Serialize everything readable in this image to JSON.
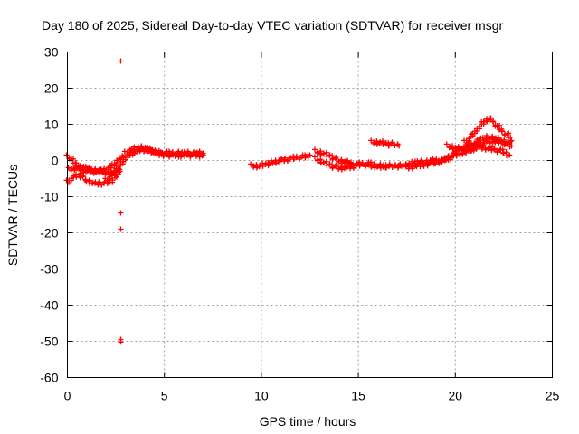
{
  "chart_data": {
    "type": "scatter",
    "title": "Day 180 of 2025, Sidereal Day-to-day VTEC variation (SDTVAR) for receiver msgr",
    "xlabel": "GPS time / hours",
    "ylabel": "SDTVAR / TECUs",
    "xlim": [
      0,
      25
    ],
    "ylim": [
      -60,
      30
    ],
    "xticks": [
      0,
      5,
      10,
      15,
      20,
      25
    ],
    "yticks": [
      -60,
      -50,
      -40,
      -30,
      -20,
      -10,
      0,
      10,
      20,
      30
    ],
    "xtick_labels": [
      "0",
      "5",
      "10",
      "15",
      "20",
      "25"
    ],
    "ytick_labels": [
      "-60",
      "-50",
      "-40",
      "-30",
      "-20",
      "-10",
      "0",
      "10",
      "20",
      "30"
    ],
    "grid": true,
    "marker": "+",
    "color": "#ff0000",
    "outliers": [
      {
        "x": 2.75,
        "y": 27.5
      },
      {
        "x": 2.75,
        "y": -14.5
      },
      {
        "x": 2.75,
        "y": -19.0
      },
      {
        "x": 2.75,
        "y": -49.5
      },
      {
        "x": 2.75,
        "y": -50.2
      }
    ],
    "tracks": [
      {
        "name": "track-1",
        "points": [
          [
            0.0,
            -6.0
          ],
          [
            0.3,
            -4.5
          ],
          [
            0.6,
            -4.0
          ],
          [
            1.0,
            -5.5
          ],
          [
            1.4,
            -6.5
          ],
          [
            1.8,
            -6.2
          ],
          [
            2.2,
            -6.0
          ],
          [
            2.5,
            -4.5
          ],
          [
            2.7,
            -3.0
          ]
        ]
      },
      {
        "name": "track-2",
        "points": [
          [
            0.0,
            1.0
          ],
          [
            0.2,
            0.5
          ],
          [
            0.4,
            -1.0
          ],
          [
            0.7,
            -2.5
          ],
          [
            1.0,
            -3.0
          ],
          [
            1.4,
            -3.0
          ],
          [
            1.8,
            -3.2
          ],
          [
            2.2,
            -3.5
          ],
          [
            2.5,
            -3.0
          ],
          [
            2.7,
            -2.5
          ]
        ]
      },
      {
        "name": "track-3",
        "points": [
          [
            0.1,
            -2.5
          ],
          [
            0.5,
            -2.0
          ],
          [
            0.9,
            -2.0
          ],
          [
            1.3,
            -2.5
          ],
          [
            1.7,
            -3.0
          ],
          [
            2.0,
            -2.5
          ],
          [
            2.3,
            -1.5
          ],
          [
            2.5,
            -0.5
          ],
          [
            2.7,
            0.5
          ],
          [
            2.9,
            1.0
          ]
        ]
      },
      {
        "name": "track-4",
        "points": [
          [
            2.0,
            -5.5
          ],
          [
            2.3,
            -4.0
          ],
          [
            2.6,
            -2.0
          ],
          [
            2.9,
            0.0
          ],
          [
            3.2,
            1.5
          ],
          [
            3.5,
            2.5
          ],
          [
            3.8,
            3.0
          ],
          [
            4.1,
            3.0
          ],
          [
            4.4,
            2.5
          ],
          [
            4.7,
            2.0
          ],
          [
            5.0,
            1.5
          ],
          [
            5.4,
            1.5
          ],
          [
            5.8,
            1.5
          ],
          [
            6.2,
            1.5
          ],
          [
            6.6,
            1.5
          ],
          [
            7.0,
            1.5
          ]
        ]
      },
      {
        "name": "track-5",
        "points": [
          [
            3.0,
            2.0
          ],
          [
            3.3,
            3.0
          ],
          [
            3.6,
            3.5
          ],
          [
            3.9,
            3.5
          ],
          [
            4.2,
            3.0
          ],
          [
            4.5,
            2.5
          ],
          [
            4.8,
            2.0
          ],
          [
            5.2,
            2.0
          ],
          [
            5.6,
            2.0
          ],
          [
            6.0,
            2.0
          ],
          [
            6.4,
            2.0
          ],
          [
            6.8,
            2.0
          ],
          [
            7.0,
            2.0
          ]
        ]
      },
      {
        "name": "track-6",
        "points": [
          [
            9.5,
            -1.5
          ],
          [
            9.9,
            -1.5
          ],
          [
            10.3,
            -1.0
          ],
          [
            10.6,
            -0.5
          ],
          [
            11.0,
            0.0
          ],
          [
            11.4,
            0.5
          ],
          [
            11.8,
            0.8
          ],
          [
            12.2,
            1.0
          ],
          [
            12.5,
            1.5
          ]
        ]
      },
      {
        "name": "track-7",
        "points": [
          [
            12.8,
            2.5
          ],
          [
            13.2,
            2.0
          ],
          [
            13.6,
            1.0
          ],
          [
            14.0,
            0.0
          ],
          [
            14.4,
            -0.5
          ],
          [
            14.8,
            -1.0
          ],
          [
            15.2,
            -1.0
          ],
          [
            15.6,
            -1.5
          ],
          [
            16.0,
            -1.5
          ],
          [
            16.4,
            -1.5
          ],
          [
            16.8,
            -1.5
          ],
          [
            17.2,
            -1.5
          ]
        ]
      },
      {
        "name": "track-8",
        "points": [
          [
            12.8,
            0.5
          ],
          [
            13.2,
            -0.5
          ],
          [
            13.6,
            -1.5
          ],
          [
            14.0,
            -2.0
          ],
          [
            14.4,
            -2.0
          ],
          [
            14.8,
            -1.5
          ],
          [
            15.2,
            -1.0
          ],
          [
            15.6,
            -1.0
          ],
          [
            16.0,
            -1.5
          ],
          [
            16.4,
            -2.0
          ]
        ]
      },
      {
        "name": "track-9",
        "points": [
          [
            15.7,
            5.0
          ],
          [
            16.1,
            5.0
          ],
          [
            16.5,
            4.5
          ],
          [
            16.9,
            4.5
          ],
          [
            17.1,
            4.0
          ]
        ]
      },
      {
        "name": "track-10",
        "points": [
          [
            17.2,
            -1.5
          ],
          [
            17.6,
            -1.0
          ],
          [
            18.0,
            -0.5
          ],
          [
            18.4,
            -0.5
          ],
          [
            18.8,
            0.0
          ],
          [
            19.2,
            0.0
          ],
          [
            19.6,
            0.5
          ],
          [
            20.0,
            1.5
          ],
          [
            20.4,
            2.0
          ],
          [
            20.8,
            3.0
          ],
          [
            21.2,
            4.5
          ],
          [
            21.6,
            5.0
          ],
          [
            22.0,
            5.5
          ],
          [
            22.4,
            5.0
          ],
          [
            22.8,
            4.5
          ]
        ]
      },
      {
        "name": "track-11",
        "points": [
          [
            17.5,
            -2.0
          ],
          [
            18.0,
            -1.5
          ],
          [
            18.5,
            -1.0
          ],
          [
            19.0,
            -0.5
          ],
          [
            19.5,
            0.0
          ],
          [
            19.8,
            1.5
          ],
          [
            20.2,
            3.0
          ],
          [
            20.6,
            4.0
          ],
          [
            21.0,
            5.0
          ],
          [
            21.4,
            6.0
          ],
          [
            21.8,
            6.5
          ],
          [
            22.2,
            6.0
          ],
          [
            22.6,
            5.0
          ],
          [
            22.9,
            4.0
          ]
        ]
      },
      {
        "name": "track-12",
        "points": [
          [
            19.6,
            4.0
          ],
          [
            20.0,
            3.5
          ],
          [
            20.4,
            3.0
          ],
          [
            20.8,
            3.0
          ],
          [
            21.2,
            3.5
          ],
          [
            21.6,
            3.5
          ],
          [
            22.0,
            3.0
          ],
          [
            22.4,
            2.5
          ],
          [
            22.8,
            1.5
          ]
        ]
      },
      {
        "name": "track-13",
        "points": [
          [
            20.5,
            5.0
          ],
          [
            20.9,
            7.0
          ],
          [
            21.2,
            9.0
          ],
          [
            21.5,
            11.0
          ],
          [
            21.8,
            11.5
          ],
          [
            22.1,
            10.0
          ],
          [
            22.4,
            8.0
          ],
          [
            22.7,
            7.0
          ],
          [
            22.9,
            5.5
          ]
        ]
      }
    ]
  }
}
